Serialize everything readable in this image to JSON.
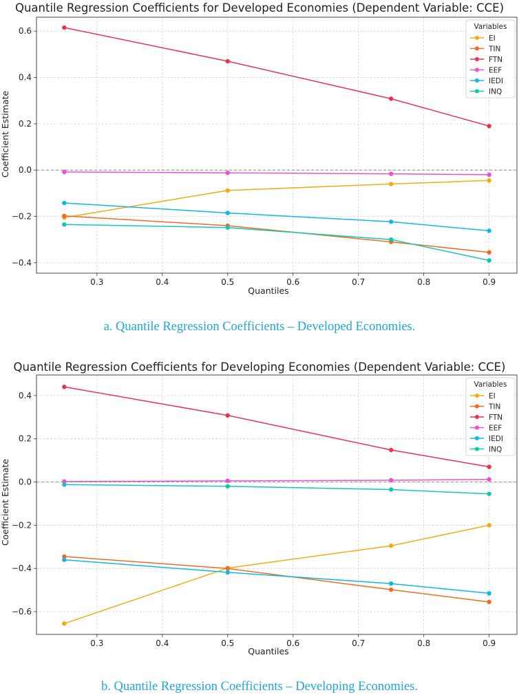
{
  "chart_data": [
    {
      "type": "line",
      "title": "Quantile Regression Coefficients for Developed Economies (Dependent Variable: CCE)",
      "xlabel": "Quantiles",
      "ylabel": "Coefficient Estimate",
      "x": [
        0.25,
        0.5,
        0.75,
        0.9
      ],
      "xlim": [
        0.2075,
        0.9425
      ],
      "ylim": [
        -0.445,
        0.66
      ],
      "xticks": [
        "0.3",
        "0.4",
        "0.5",
        "0.6",
        "0.7",
        "0.8",
        "0.9"
      ],
      "yticks": [
        "−0.4",
        "−0.2",
        "0.0",
        "0.2",
        "0.4",
        "0.6"
      ],
      "grid": true,
      "zero_line": true,
      "legend_title": "Variables",
      "legend_position": "top-right",
      "series": [
        {
          "name": "EI",
          "color": "#f2ab10",
          "values": [
            -0.205,
            -0.088,
            -0.06,
            -0.045
          ]
        },
        {
          "name": "TIN",
          "color": "#f16a22",
          "values": [
            -0.198,
            -0.24,
            -0.31,
            -0.355
          ]
        },
        {
          "name": "FTN",
          "color": "#ec3050",
          "values": [
            0.615,
            0.47,
            0.308,
            0.19
          ]
        },
        {
          "name": "EEF",
          "color": "#ee4fce",
          "values": [
            -0.008,
            -0.012,
            -0.016,
            -0.02
          ]
        },
        {
          "name": "IEDI",
          "color": "#0fb7e6",
          "values": [
            -0.142,
            -0.185,
            -0.223,
            -0.262
          ]
        },
        {
          "name": "INQ",
          "color": "#10c7b5",
          "values": [
            -0.235,
            -0.248,
            -0.3,
            -0.39
          ]
        }
      ]
    },
    {
      "type": "line",
      "title": "Quantile Regression Coefficients for Developing Economies (Dependent Variable: CCE)",
      "xlabel": "Quantiles",
      "ylabel": "Coefficient Estimate",
      "x": [
        0.25,
        0.5,
        0.75,
        0.9
      ],
      "xlim": [
        0.2075,
        0.9425
      ],
      "ylim": [
        -0.705,
        0.495
      ],
      "xticks": [
        "0.3",
        "0.4",
        "0.5",
        "0.6",
        "0.7",
        "0.8",
        "0.9"
      ],
      "yticks": [
        "−0.6",
        "−0.4",
        "−0.2",
        "0.0",
        "0.2",
        "0.4"
      ],
      "grid": true,
      "zero_line": true,
      "legend_title": "Variables",
      "legend_position": "top-right",
      "series": [
        {
          "name": "EI",
          "color": "#f2ab10",
          "values": [
            -0.655,
            -0.398,
            -0.295,
            -0.2
          ]
        },
        {
          "name": "TIN",
          "color": "#f16a22",
          "values": [
            -0.345,
            -0.4,
            -0.498,
            -0.555
          ]
        },
        {
          "name": "FTN",
          "color": "#ec3050",
          "values": [
            0.44,
            0.308,
            0.148,
            0.07
          ]
        },
        {
          "name": "EEF",
          "color": "#ee4fce",
          "values": [
            0.002,
            0.005,
            0.008,
            0.012
          ]
        },
        {
          "name": "IEDI",
          "color": "#0fb7e6",
          "values": [
            -0.36,
            -0.418,
            -0.47,
            -0.515
          ]
        },
        {
          "name": "INQ",
          "color": "#10c7b5",
          "values": [
            -0.012,
            -0.02,
            -0.035,
            -0.055
          ]
        }
      ]
    }
  ],
  "captions": {
    "a": "a. Quantile Regression Coefficients – Developed Economies.",
    "b": "b. Quantile Regression Coefficients – Developing Economies."
  }
}
